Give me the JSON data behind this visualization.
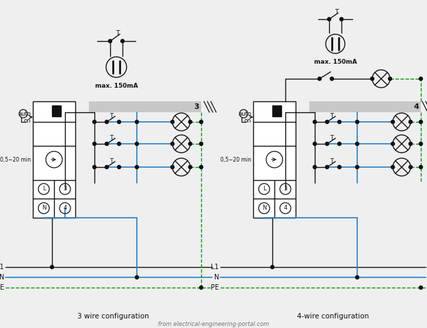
{
  "bg_color": "#efefef",
  "line_black": "#111111",
  "line_blue": "#3388cc",
  "line_green": "#009900",
  "gray_bar": "#c8c8c8",
  "white": "#ffffff",
  "label_3wire": "3 wire configuration",
  "label_4wire": "4-wire configuration",
  "max_current": "max. 150mA",
  "figw": 6.24,
  "figh": 4.79,
  "dpi": 100
}
